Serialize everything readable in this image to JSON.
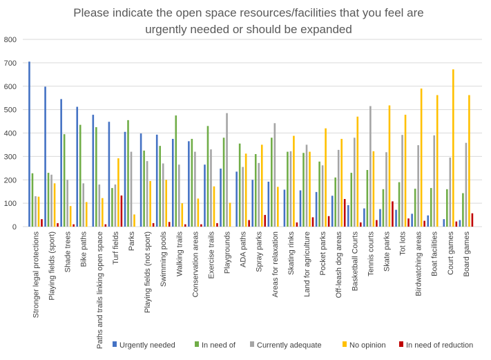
{
  "chart_data": {
    "type": "bar",
    "title_lines": [
      "Please indicate the open space resources/facilities that you feel are",
      "urgently needed or should be expanded"
    ],
    "xlabel": "",
    "ylabel": "",
    "ylim": [
      0,
      800
    ],
    "yticks": [
      0,
      100,
      200,
      300,
      400,
      500,
      600,
      700,
      800
    ],
    "grid": true,
    "legend_position": "bottom",
    "categories": [
      "Stronger legal protections",
      "Playing fields (sport)",
      "Shade trees",
      "Bike paths",
      "Paths and trails linking open space",
      "Turf fields",
      "Parks",
      "Playing fields (not sport)",
      "Swimming pools",
      "Walking trails",
      "Conservation areas",
      "Exercise trails",
      "Playgrounds",
      "ADA paths",
      "Spray parks",
      "Areas for relaxation",
      "Skating rinks",
      "Land for agriculture",
      "Pocket parks",
      "Off-leash dog areas",
      "Basketball Courts",
      "Tennis courts",
      "Skate parks",
      "Tot lots",
      "Birdwatching areas",
      "Boat facilities",
      "Court games",
      "Board games"
    ],
    "series": [
      {
        "name": "Urgently needed",
        "color": "#4472C4",
        "values": [
          705,
          598,
          545,
          512,
          478,
          448,
          405,
          398,
          393,
          375,
          365,
          265,
          248,
          235,
          200,
          192,
          158,
          155,
          148,
          132,
          92,
          78,
          75,
          72,
          55,
          48,
          32,
          28
        ]
      },
      {
        "name": "In need of",
        "color": "#70AD47",
        "values": [
          228,
          230,
          395,
          435,
          425,
          165,
          455,
          325,
          345,
          475,
          375,
          430,
          380,
          355,
          310,
          380,
          320,
          315,
          278,
          210,
          230,
          242,
          160,
          190,
          162,
          165,
          160,
          143
        ]
      },
      {
        "name": "Currently adequate",
        "color": "#A5A5A5",
        "values": [
          130,
          222,
          200,
          185,
          180,
          180,
          320,
          280,
          270,
          265,
          320,
          330,
          485,
          255,
          272,
          442,
          322,
          350,
          262,
          328,
          380,
          515,
          318,
          392,
          348,
          390,
          295,
          358
        ]
      },
      {
        "name": "No opinion",
        "color": "#FFC000",
        "values": [
          128,
          185,
          88,
          105,
          122,
          292,
          52,
          195,
          200,
          100,
          120,
          172,
          102,
          312,
          350,
          170,
          388,
          320,
          420,
          375,
          470,
          322,
          518,
          478,
          590,
          562,
          672,
          562
        ]
      },
      {
        "name": "In need of reduction",
        "color": "#C00000",
        "values": [
          32,
          15,
          10,
          0,
          10,
          133,
          0,
          15,
          20,
          10,
          10,
          15,
          0,
          28,
          50,
          0,
          18,
          40,
          45,
          118,
          18,
          28,
          108,
          35,
          25,
          0,
          22,
          57
        ]
      }
    ]
  }
}
